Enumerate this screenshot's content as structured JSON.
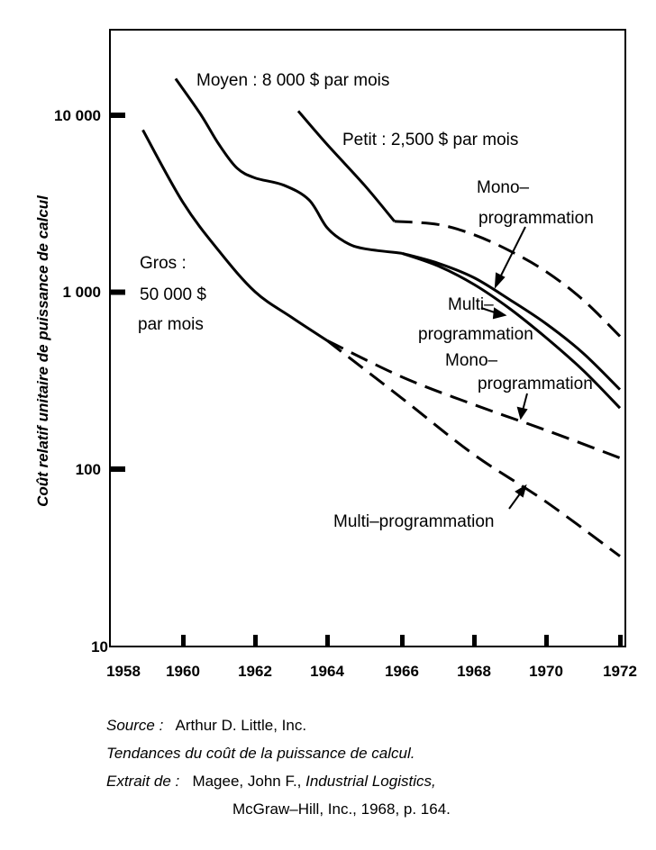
{
  "chart_data": {
    "type": "line",
    "y_scale": "log",
    "xlim": [
      1958,
      1972
    ],
    "ylim": [
      10,
      30000
    ],
    "xticks": [
      "1958",
      "1960",
      "1962",
      "1964",
      "1966",
      "1968",
      "1970",
      "1972"
    ],
    "yticks": [
      "10",
      "100",
      "1 000",
      "10 000"
    ],
    "ylabel": "Coût relatif unitaire de puissance de calcul",
    "grid": false,
    "series": [
      {
        "id": "gros-base",
        "style": "solid",
        "x": [
          1958.9,
          1960,
          1961,
          1962,
          1963,
          1964
        ],
        "y": [
          8200,
          3200,
          1700,
          1000,
          720,
          530
        ]
      },
      {
        "id": "gros-mono",
        "style": "dashed",
        "x": [
          1964,
          1966,
          1968,
          1970,
          1972
        ],
        "y": [
          530,
          330,
          230,
          165,
          115
        ]
      },
      {
        "id": "gros-multi",
        "style": "dashed",
        "x": [
          1964,
          1966,
          1968,
          1970,
          1972
        ],
        "y": [
          530,
          250,
          120,
          65,
          32
        ]
      },
      {
        "id": "moyen-base",
        "style": "solid",
        "x": [
          1959.8,
          1960.5,
          1961,
          1961.5,
          1962,
          1962.8,
          1963.5,
          1964,
          1964.5,
          1965,
          1966
        ],
        "y": [
          16000,
          10000,
          6800,
          5000,
          4400,
          4000,
          3300,
          2300,
          1900,
          1750,
          1650
        ]
      },
      {
        "id": "moyen-multi",
        "style": "solid",
        "x": [
          1966,
          1967,
          1968,
          1969,
          1970,
          1971,
          1972
        ],
        "y": [
          1650,
          1450,
          1200,
          900,
          660,
          450,
          280
        ]
      },
      {
        "id": "moyen-mono",
        "style": "solid",
        "x": [
          1966,
          1967,
          1968,
          1969,
          1970,
          1971,
          1972
        ],
        "y": [
          1650,
          1400,
          1100,
          800,
          550,
          360,
          220
        ]
      },
      {
        "id": "petit-base",
        "style": "solid",
        "x": [
          1963.2,
          1964,
          1965,
          1965.8
        ],
        "y": [
          10500,
          6800,
          4000,
          2500
        ]
      },
      {
        "id": "petit-mono",
        "style": "dashed",
        "x": [
          1965.8,
          1967,
          1968,
          1969,
          1970,
          1971,
          1972
        ],
        "y": [
          2500,
          2400,
          2100,
          1700,
          1300,
          900,
          560
        ]
      }
    ],
    "annotations": [
      {
        "id": "moyen",
        "text": "Moyen : 8 000 $ par mois"
      },
      {
        "id": "petit",
        "text": "Petit : 2,500 $ par mois"
      },
      {
        "id": "gros1",
        "text": "Gros :"
      },
      {
        "id": "gros2",
        "text": "50 000 $"
      },
      {
        "id": "gros3",
        "text": "par mois"
      },
      {
        "id": "mono_top1",
        "text": "Mono–"
      },
      {
        "id": "mono_top2",
        "text": "programmation"
      },
      {
        "id": "multi_mid1",
        "text": "Multi–"
      },
      {
        "id": "multi_mid2",
        "text": "programmation"
      },
      {
        "id": "mono_mid1",
        "text": "Mono–"
      },
      {
        "id": "mono_mid2",
        "text": "programmation"
      },
      {
        "id": "multi_low",
        "text": "Multi–programmation"
      }
    ]
  },
  "source": {
    "label": "Source :",
    "author": "Arthur D. Little, Inc.",
    "title": "Tendances du coût de la puissance de calcul.",
    "extract_label": "Extrait de :",
    "ref_author": "Magee, John F., ",
    "ref_book": "Industrial Logistics,",
    "ref_pub": "McGraw–Hill, Inc., 1968, p. 164."
  }
}
